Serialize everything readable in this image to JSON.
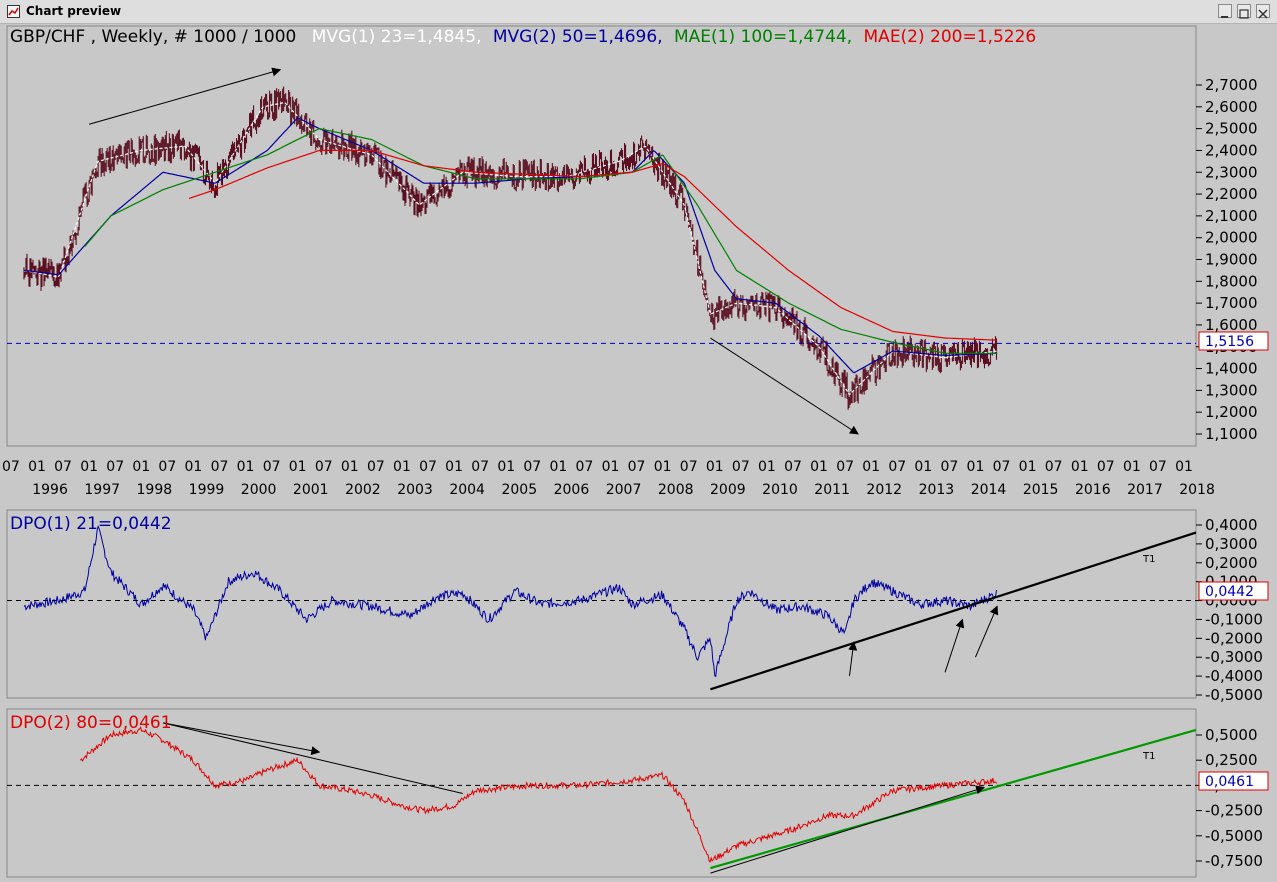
{
  "window": {
    "title": "Chart preview",
    "controls": [
      "minimize",
      "maximize",
      "close"
    ]
  },
  "colors": {
    "background": "#c8c8c8",
    "price_bars": "#5a1020",
    "mvg1": "#ffffff",
    "mvg2": "#0000a0",
    "mae1": "#008000",
    "mae2": "#e00000",
    "dpo1": "#0000a0",
    "dpo2": "#e00000",
    "trendline_t1_dpo2": "#009900",
    "reference_line": "#0000c0"
  },
  "main_panel": {
    "caption": {
      "symbol": "GBP/CHF , Weekly, # 1000 / 1000",
      "mvg1": "MVG(1) 23=1,4845,",
      "mvg2": "MVG(2) 50=1,4696,",
      "mae1": "MAE(1) 100=1,4744,",
      "mae2": "MAE(2) 200=1,5226"
    },
    "current_value_label": "1,5156",
    "y_ticks": [
      "2,7000",
      "2,6000",
      "2,5000",
      "2,4000",
      "2,3000",
      "2,2000",
      "2,1000",
      "2,0000",
      "1,9000",
      "1,8000",
      "1,7000",
      "1,6000",
      "1,5000",
      "1,4000",
      "1,3000",
      "1,2000",
      "1,1000"
    ],
    "x_month_ticks": [
      "07",
      "01",
      "07",
      "01",
      "07",
      "01",
      "07",
      "01",
      "07",
      "01",
      "07",
      "01",
      "07",
      "01",
      "07",
      "01",
      "07",
      "01",
      "07",
      "01",
      "07",
      "01",
      "07",
      "01",
      "07",
      "01",
      "07",
      "01",
      "07",
      "01",
      "07",
      "01",
      "07",
      "01",
      "07",
      "01",
      "07",
      "01",
      "07",
      "01",
      "07",
      "01",
      "07",
      "01",
      "07",
      "01"
    ],
    "x_year_ticks": [
      "1996",
      "1997",
      "1998",
      "1999",
      "2000",
      "2001",
      "2002",
      "2003",
      "2004",
      "2005",
      "2006",
      "2007",
      "2008",
      "2009",
      "2010",
      "2011",
      "2012",
      "2013",
      "2014",
      "2015",
      "2016",
      "2017",
      "2018"
    ]
  },
  "dpo1_panel": {
    "caption": "DPO(1) 21=0,0442",
    "current_value_label": "0,0442",
    "trendline_label": "T1",
    "y_ticks": [
      "0,4000",
      "0,3000",
      "0,2000",
      "0,1000",
      "0,0000",
      "-0,1000",
      "-0,2000",
      "-0,3000",
      "-0,4000",
      "-0,5000"
    ]
  },
  "dpo2_panel": {
    "caption": "DPO(2) 80=0,0461",
    "current_value_label": "0,0461",
    "trendline_label": "T1",
    "y_ticks": [
      "0,5000",
      "0,2500",
      "0,0000",
      "-0,2500",
      "-0,5000",
      "-0,7500"
    ]
  },
  "chart_data": [
    {
      "type": "line",
      "title": "GBP/CHF , Weekly, # 1000 / 1000",
      "x_range": [
        "1995-10",
        "2018-12"
      ],
      "ylim": [
        1.05,
        2.85
      ],
      "series": [
        {
          "name": "MVG(1) 23",
          "x": [
            "1995-10",
            "1996-06",
            "1997-03",
            "1998-01",
            "1998-11",
            "1999-06",
            "2000-05",
            "2000-10",
            "2001-06",
            "2002-06",
            "2003-05",
            "2004-03",
            "2005-03",
            "2006-03",
            "2007-03",
            "2007-09",
            "2008-06",
            "2008-12",
            "2009-06",
            "2010-03",
            "2011-01",
            "2011-08",
            "2012-06",
            "2013-06",
            "2014-06"
          ],
          "values": [
            1.85,
            1.82,
            2.35,
            2.4,
            2.42,
            2.25,
            2.6,
            2.62,
            2.45,
            2.38,
            2.15,
            2.3,
            2.28,
            2.28,
            2.35,
            2.42,
            2.15,
            1.65,
            1.7,
            1.68,
            1.5,
            1.28,
            1.48,
            1.45,
            1.48
          ]
        },
        {
          "name": "MVG(2) 50",
          "x": [
            "1995-10",
            "1996-06",
            "1997-06",
            "1998-06",
            "1999-06",
            "2000-06",
            "2001-01",
            "2001-06",
            "2002-06",
            "2003-06",
            "2004-06",
            "2005-06",
            "2006-06",
            "2007-06",
            "2007-11",
            "2008-06",
            "2009-01",
            "2009-06",
            "2010-03",
            "2011-01",
            "2011-09",
            "2012-06",
            "2013-06",
            "2014-06"
          ],
          "values": [
            1.85,
            1.83,
            2.1,
            2.3,
            2.25,
            2.4,
            2.55,
            2.5,
            2.4,
            2.25,
            2.25,
            2.27,
            2.28,
            2.3,
            2.4,
            2.25,
            1.85,
            1.72,
            1.7,
            1.55,
            1.38,
            1.48,
            1.46,
            1.47
          ]
        },
        {
          "name": "MAE(1) 100",
          "x": [
            "1996-12",
            "1997-06",
            "1998-06",
            "1999-06",
            "2000-06",
            "2001-06",
            "2002-06",
            "2003-06",
            "2004-06",
            "2005-06",
            "2006-06",
            "2007-06",
            "2008-01",
            "2008-09",
            "2009-06",
            "2010-06",
            "2011-06",
            "2012-06",
            "2013-06",
            "2014-06"
          ],
          "values": [
            1.96,
            2.1,
            2.22,
            2.3,
            2.38,
            2.5,
            2.45,
            2.33,
            2.27,
            2.27,
            2.27,
            2.3,
            2.38,
            2.15,
            1.85,
            1.7,
            1.58,
            1.52,
            1.47,
            1.47
          ]
        },
        {
          "name": "MAE(2) 200",
          "x": [
            "1998-12",
            "1999-06",
            "2000-06",
            "2001-06",
            "2002-06",
            "2003-06",
            "2004-06",
            "2005-06",
            "2006-06",
            "2007-06",
            "2008-01",
            "2008-06",
            "2009-06",
            "2010-06",
            "2011-06",
            "2012-06",
            "2013-06",
            "2014-06"
          ],
          "values": [
            2.18,
            2.22,
            2.32,
            2.4,
            2.4,
            2.33,
            2.3,
            2.29,
            2.28,
            2.3,
            2.34,
            2.28,
            2.05,
            1.85,
            1.68,
            1.57,
            1.54,
            1.53
          ]
        }
      ],
      "reference_line": 1.5156,
      "trend_annotations": [
        {
          "from": [
            "1997-01",
            2.52
          ],
          "to": [
            "2000-09",
            2.77
          ]
        },
        {
          "from": [
            "2008-12",
            1.54
          ],
          "to": [
            "2011-10",
            1.1
          ]
        }
      ]
    },
    {
      "type": "line",
      "title": "DPO(1) 21=0,0442",
      "ylim": [
        -0.52,
        0.45
      ],
      "series": [
        {
          "name": "DPO(1) 21",
          "x": [
            "1995-10",
            "1996-06",
            "1996-12",
            "1997-03",
            "1997-06",
            "1998-01",
            "1998-06",
            "1999-01",
            "1999-04",
            "1999-09",
            "2000-03",
            "2000-09",
            "2001-03",
            "2001-09",
            "2002-06",
            "2003-03",
            "2003-09",
            "2004-03",
            "2004-09",
            "2005-03",
            "2005-09",
            "2006-06",
            "2007-03",
            "2007-06",
            "2008-01",
            "2008-06",
            "2008-09",
            "2008-12",
            "2009-01",
            "2009-06",
            "2009-09",
            "2010-03",
            "2010-09",
            "2011-03",
            "2011-07",
            "2011-09",
            "2012-01",
            "2012-06",
            "2012-12",
            "2013-06",
            "2013-12",
            "2014-06"
          ],
          "values": [
            -0.03,
            0.0,
            0.05,
            0.38,
            0.15,
            -0.02,
            0.08,
            -0.05,
            -0.2,
            0.1,
            0.15,
            0.05,
            -0.1,
            0.0,
            -0.03,
            -0.08,
            0.02,
            0.04,
            -0.1,
            0.05,
            -0.02,
            0.0,
            0.07,
            -0.02,
            0.03,
            -0.15,
            -0.3,
            -0.2,
            -0.4,
            0.0,
            0.05,
            -0.05,
            -0.03,
            -0.08,
            -0.18,
            0.0,
            0.1,
            0.05,
            -0.02,
            0.0,
            -0.03,
            0.04
          ]
        }
      ],
      "reference_line": 0.0,
      "trendline_t1": {
        "from": [
          "2008-12",
          -0.47
        ],
        "to": [
          "2018-12",
          0.36
        ]
      }
    },
    {
      "type": "line",
      "title": "DPO(2) 80=0,0461",
      "ylim": [
        -0.85,
        0.65
      ],
      "series": [
        {
          "name": "DPO(2) 80",
          "x": [
            "1996-11",
            "1997-06",
            "1998-01",
            "1998-06",
            "1999-01",
            "1999-06",
            "2000-01",
            "2000-06",
            "2001-01",
            "2001-06",
            "2002-01",
            "2002-06",
            "2003-01",
            "2003-06",
            "2004-01",
            "2004-06",
            "2005-06",
            "2006-06",
            "2007-06",
            "2008-01",
            "2008-06",
            "2008-12",
            "2009-06",
            "2010-06",
            "2011-03",
            "2011-09",
            "2012-06",
            "2013-06",
            "2014-06"
          ],
          "values": [
            0.25,
            0.5,
            0.55,
            0.45,
            0.25,
            0.0,
            0.05,
            0.15,
            0.25,
            0.0,
            -0.05,
            -0.1,
            -0.2,
            -0.25,
            -0.2,
            -0.05,
            0.0,
            0.0,
            0.05,
            0.1,
            -0.15,
            -0.75,
            -0.6,
            -0.45,
            -0.3,
            -0.3,
            -0.05,
            0.0,
            0.05
          ]
        }
      ],
      "reference_line": 0.0,
      "trendline_t1": {
        "from": [
          "2008-12",
          -0.82
        ],
        "to": [
          "2018-12",
          0.55
        ]
      },
      "trend_annotations": [
        {
          "from": [
            "1998-06",
            0.62
          ],
          "to": [
            "2001-06",
            0.33
          ]
        },
        {
          "from": [
            "1998-06",
            0.62
          ],
          "to": [
            "2004-03",
            -0.08
          ]
        },
        {
          "from": [
            "2008-12",
            -0.87
          ],
          "to": [
            "2014-03",
            -0.02
          ]
        }
      ]
    }
  ]
}
